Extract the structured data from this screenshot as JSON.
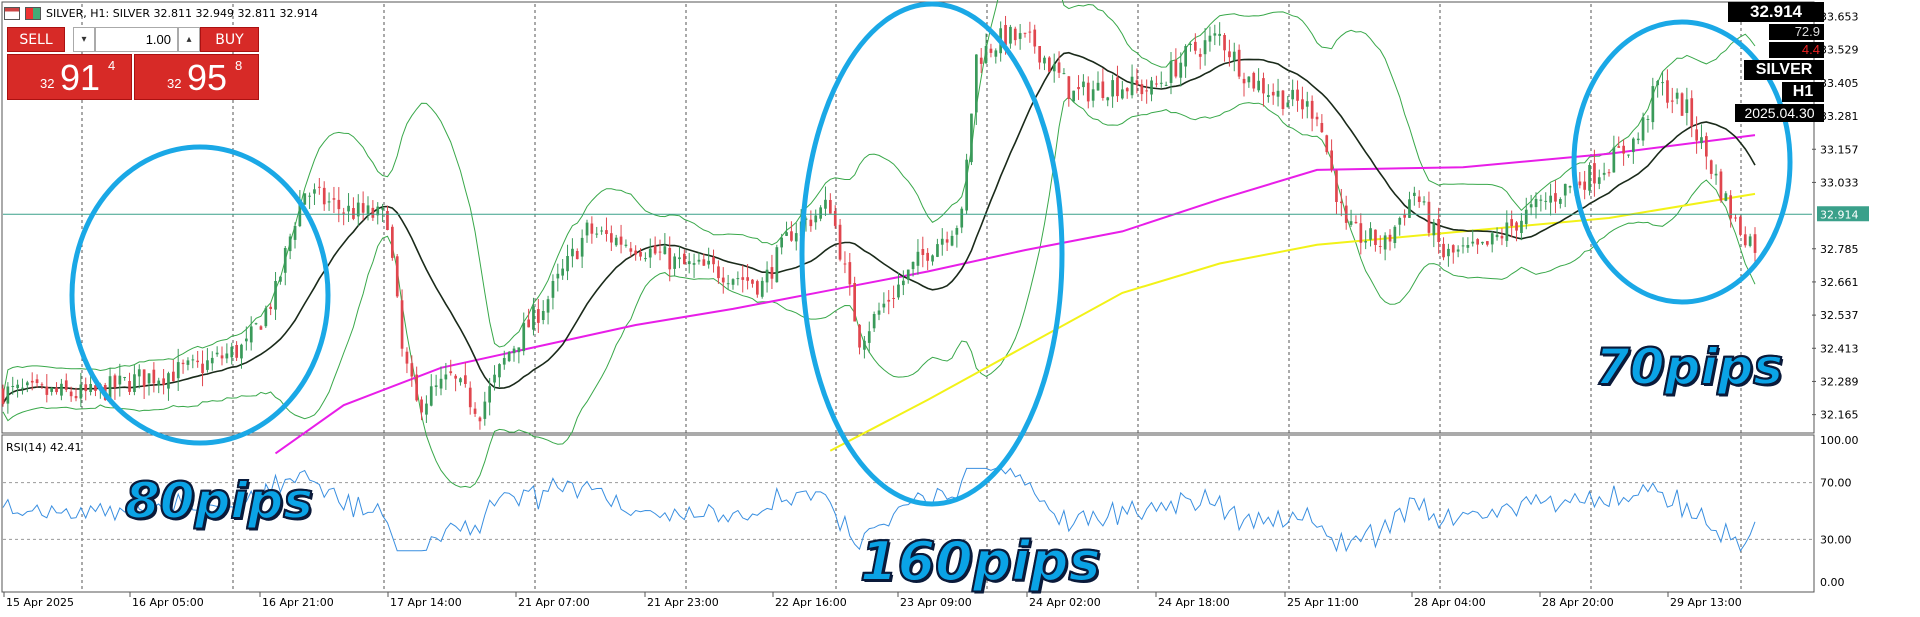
{
  "header": {
    "symbol_line": "SILVER, H1:  SILVER  32.811 32.949 32.811 32.914"
  },
  "trade_panel": {
    "sell_label": "SELL",
    "buy_label": "BUY",
    "lot_value": "1.00",
    "bid": {
      "prefix": "32",
      "big": "91",
      "small": "4"
    },
    "ask": {
      "prefix": "32",
      "big": "95",
      "small": "8"
    }
  },
  "info_box": {
    "last_price": "32.914",
    "spread": "72.9",
    "change": "4.4",
    "symbol": "SILVER",
    "timeframe": "H1",
    "date": "2025.04.30"
  },
  "colors": {
    "bull_candle": "#3a9a5a",
    "bear_candle": "#e0464e",
    "bollinger": "#39a84a",
    "ma_short": "#1a2a1a",
    "ma_mid": "#e81ee8",
    "ma_long": "#f2f218",
    "rsi_line": "#3a8fe0",
    "annotation": "#1aa8e6",
    "price_line": "#3aa08a"
  },
  "chart_data": {
    "type": "candlestick",
    "symbol": "SILVER",
    "timeframe": "H1",
    "ylim": [
      32.1,
      33.7
    ],
    "y_ticks": [
      "33.653",
      "33.529",
      "33.405",
      "33.281",
      "33.157",
      "33.033",
      "32.914",
      "32.785",
      "32.661",
      "32.537",
      "32.413",
      "32.289",
      "32.165"
    ],
    "current_price_label": "32.914",
    "x_ticks": [
      "15 Apr 2025",
      "16 Apr 05:00",
      "16 Apr 21:00",
      "17 Apr 14:00",
      "21 Apr 07:00",
      "21 Apr 23:00",
      "22 Apr 16:00",
      "23 Apr 09:00",
      "24 Apr 02:00",
      "24 Apr 18:00",
      "25 Apr 11:00",
      "28 Apr 04:00",
      "28 Apr 20:00",
      "29 Apr 13:00"
    ],
    "price_path": [
      [
        0,
        32.25
      ],
      [
        18,
        32.24
      ],
      [
        28,
        32.3
      ],
      [
        40,
        32.34
      ],
      [
        50,
        32.42
      ],
      [
        56,
        32.62
      ],
      [
        60,
        32.9
      ],
      [
        62,
        33.0
      ],
      [
        70,
        32.93
      ],
      [
        79,
        32.9
      ],
      [
        82,
        32.4
      ],
      [
        85,
        32.2
      ],
      [
        92,
        32.3
      ],
      [
        98,
        32.18
      ],
      [
        104,
        32.4
      ],
      [
        112,
        32.6
      ],
      [
        120,
        32.85
      ],
      [
        130,
        32.8
      ],
      [
        140,
        32.72
      ],
      [
        148,
        32.7
      ],
      [
        156,
        32.65
      ],
      [
        162,
        32.85
      ],
      [
        170,
        32.95
      ],
      [
        176,
        32.45
      ],
      [
        182,
        32.6
      ],
      [
        190,
        32.78
      ],
      [
        197,
        32.9
      ],
      [
        200,
        33.5
      ],
      [
        206,
        33.58
      ],
      [
        212,
        33.55
      ],
      [
        216,
        33.45
      ],
      [
        220,
        33.36
      ],
      [
        228,
        33.4
      ],
      [
        236,
        33.38
      ],
      [
        244,
        33.52
      ],
      [
        250,
        33.58
      ],
      [
        256,
        33.42
      ],
      [
        262,
        33.36
      ],
      [
        270,
        33.3
      ],
      [
        276,
        32.85
      ],
      [
        284,
        32.8
      ],
      [
        290,
        33.0
      ],
      [
        296,
        32.76
      ],
      [
        304,
        32.78
      ],
      [
        312,
        32.9
      ],
      [
        320,
        33.0
      ],
      [
        328,
        33.08
      ],
      [
        336,
        33.2
      ],
      [
        340,
        33.4
      ],
      [
        346,
        33.3
      ],
      [
        356,
        32.88
      ],
      [
        360,
        32.8
      ]
    ],
    "series": [
      {
        "name": "",
        "kind": "bollinger_upper"
      },
      {
        "name": "",
        "kind": "bollinger_mid"
      },
      {
        "name": "",
        "kind": "bollinger_lower"
      },
      {
        "name": "",
        "kind": "ma_magenta"
      },
      {
        "name": "",
        "kind": "ma_yellow"
      }
    ],
    "ma_magenta": [
      [
        56,
        32.02
      ],
      [
        70,
        32.2
      ],
      [
        90,
        32.34
      ],
      [
        110,
        32.42
      ],
      [
        130,
        32.5
      ],
      [
        150,
        32.56
      ],
      [
        170,
        32.63
      ],
      [
        190,
        32.7
      ],
      [
        210,
        32.78
      ],
      [
        230,
        32.85
      ],
      [
        250,
        32.97
      ],
      [
        270,
        33.08
      ],
      [
        300,
        33.09
      ],
      [
        330,
        33.14
      ],
      [
        360,
        33.21
      ]
    ],
    "ma_yellow": [
      [
        170,
        32.03
      ],
      [
        190,
        32.22
      ],
      [
        210,
        32.42
      ],
      [
        230,
        32.62
      ],
      [
        250,
        32.73
      ],
      [
        270,
        32.8
      ],
      [
        300,
        32.85
      ],
      [
        330,
        32.9
      ],
      [
        360,
        32.99
      ]
    ],
    "rsi": {
      "label": "RSI(14) 42.41",
      "ylim": [
        0,
        100
      ],
      "y_ticks": [
        "100.00",
        "70.00",
        "30.00",
        "0.00"
      ],
      "levels": [
        70,
        30
      ]
    }
  },
  "annotations": {
    "pips_80": "80pips",
    "pips_160": "160pips",
    "pips_70": "70pips"
  }
}
